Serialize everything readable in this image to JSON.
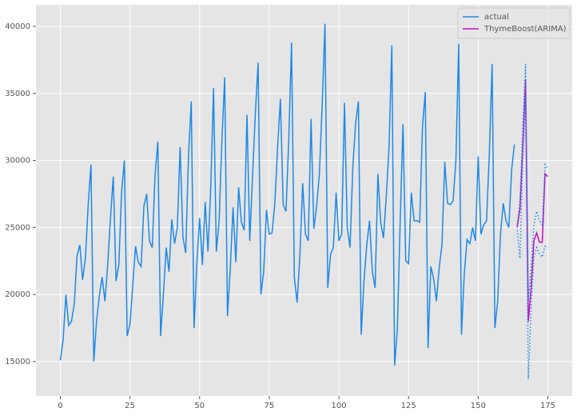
{
  "chart_data": {
    "type": "line",
    "xlim": [
      -8.75,
      183.75
    ],
    "ylim": [
      12430,
      41610
    ],
    "xticks": [
      0,
      25,
      50,
      75,
      100,
      125,
      150,
      175
    ],
    "yticks": [
      15000,
      20000,
      25000,
      30000,
      35000,
      40000
    ],
    "grid": true,
    "legend": "upper right",
    "series": [
      {
        "name": "actual",
        "color": "#1e88e5",
        "style": "solid",
        "x": [
          0,
          1,
          2,
          3,
          4,
          5,
          6,
          7,
          8,
          9,
          10,
          11,
          12,
          13,
          14,
          15,
          16,
          17,
          18,
          19,
          20,
          21,
          22,
          23,
          24,
          25,
          26,
          27,
          28,
          29,
          30,
          31,
          32,
          33,
          34,
          35,
          36,
          37,
          38,
          39,
          40,
          41,
          42,
          43,
          44,
          45,
          46,
          47,
          48,
          49,
          50,
          51,
          52,
          53,
          54,
          55,
          56,
          57,
          58,
          59,
          60,
          61,
          62,
          63,
          64,
          65,
          66,
          67,
          68,
          69,
          70,
          71,
          72,
          73,
          74,
          75,
          76,
          77,
          78,
          79,
          80,
          81,
          82,
          83,
          84,
          85,
          86,
          87,
          88,
          89,
          90,
          91,
          92,
          93,
          94,
          95,
          96,
          97,
          98,
          99,
          100,
          101,
          102,
          103,
          104,
          105,
          106,
          107,
          108,
          109,
          110,
          111,
          112,
          113,
          114,
          115,
          116,
          117,
          118,
          119,
          120,
          121,
          122,
          123,
          124,
          125,
          126,
          127,
          128,
          129,
          130,
          131,
          132,
          133,
          134,
          135,
          136,
          137,
          138,
          139,
          140,
          141,
          142,
          143,
          144,
          145,
          146,
          147,
          148,
          149,
          150,
          151,
          152,
          153,
          154,
          155,
          156,
          157,
          158,
          159,
          160,
          161,
          162,
          163
        ],
        "values": [
          15100,
          16600,
          20000,
          17700,
          18000,
          19300,
          22900,
          23700,
          21100,
          22700,
          26700,
          29700,
          15000,
          18000,
          19900,
          21300,
          19500,
          22200,
          25700,
          28800,
          21000,
          22200,
          27700,
          30000,
          16900,
          17800,
          20700,
          23600,
          22400,
          22100,
          26600,
          27500,
          24000,
          23500,
          28900,
          31400,
          16900,
          20000,
          23500,
          21700,
          25600,
          23800,
          25000,
          31000,
          24300,
          23100,
          30300,
          34400,
          17500,
          22300,
          25700,
          22200,
          26900,
          23200,
          28000,
          35400,
          23200,
          25500,
          31500,
          36200,
          18400,
          21900,
          26500,
          22400,
          28000,
          25400,
          24800,
          33400,
          24000,
          28800,
          33500,
          37300,
          20000,
          21700,
          26300,
          24500,
          24600,
          26800,
          31000,
          34600,
          26700,
          26200,
          31500,
          38800,
          21300,
          19400,
          22900,
          28300,
          24500,
          24000,
          33100,
          24900,
          26600,
          29000,
          34200,
          40200,
          20500,
          23000,
          23500,
          27600,
          24000,
          24500,
          34300,
          25000,
          23500,
          29500,
          32800,
          34400,
          17000,
          21000,
          23700,
          25500,
          21700,
          20500,
          29000,
          25400,
          24200,
          27300,
          31000,
          38600,
          14700,
          17500,
          25500,
          32700,
          22500,
          22300,
          27600,
          25500,
          25500,
          25400,
          32500,
          35100,
          16000,
          22100,
          21200,
          19500,
          22000,
          23700,
          29900,
          26800,
          26700,
          27000,
          30000,
          38700,
          17000,
          21500,
          24100,
          23800,
          25000,
          24000,
          30300,
          24500,
          25200,
          25500,
          30500,
          37200,
          17500,
          19500,
          24500,
          26800,
          25500,
          25000,
          29300,
          31200
        ]
      },
      {
        "name": "ThymeBoost(ARIMA)",
        "color": "#c20ec2",
        "style": "solid",
        "x": [
          164,
          165,
          166,
          167,
          168,
          169,
          170,
          171,
          172,
          173,
          174,
          175
        ],
        "values": [
          25000,
          26400,
          31000,
          36000,
          18000,
          20500,
          24000,
          24600,
          23900,
          23900,
          29000,
          28800
        ]
      },
      {
        "color": "#1e88e5",
        "style": "dotted",
        "x": [
          164,
          165,
          166,
          167,
          168,
          169,
          170,
          171,
          172,
          173,
          174,
          175
        ],
        "values": [
          25200,
          27000,
          32500,
          37200,
          19500,
          22000,
          25200,
          26200,
          25500,
          25200,
          29700,
          29400
        ]
      },
      {
        "color": "#1e88e5",
        "style": "dotted",
        "x": [
          164,
          165,
          166,
          167,
          168,
          169,
          170,
          171,
          172,
          173,
          174,
          175
        ],
        "values": [
          24800,
          22700,
          30000,
          34800,
          13700,
          19000,
          22800,
          23500,
          23000,
          22800,
          23600,
          23500
        ]
      }
    ]
  }
}
